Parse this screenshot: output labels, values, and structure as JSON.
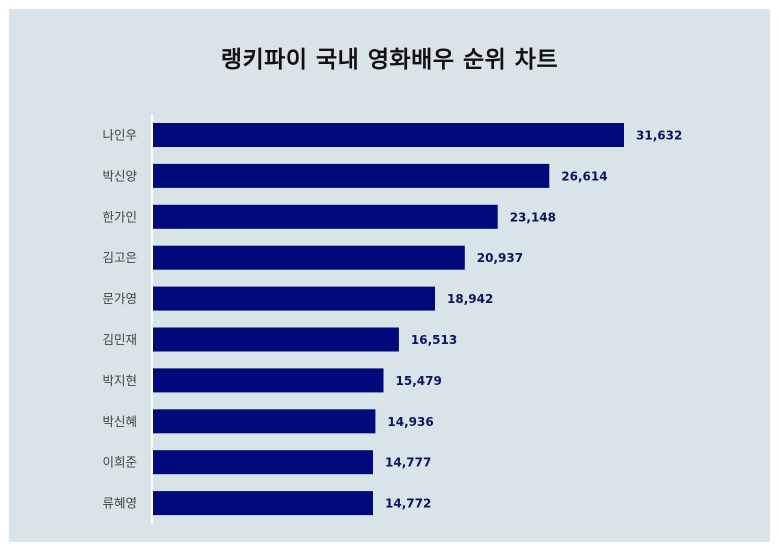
{
  "chart_data": {
    "type": "bar",
    "orientation": "horizontal",
    "title": "랭키파이 국내 영화배우 순위 차트",
    "categories": [
      "나인우",
      "박신양",
      "한가인",
      "김고은",
      "문가영",
      "김민재",
      "박지현",
      "박신혜",
      "이희준",
      "류혜영"
    ],
    "values": [
      31632,
      26614,
      23148,
      20937,
      18942,
      16513,
      15479,
      14936,
      14777,
      14772
    ],
    "value_labels": [
      "31,632",
      "26,614",
      "23,148",
      "20,937",
      "18,942",
      "16,513",
      "15,479",
      "14,936",
      "14,777",
      "14,772"
    ],
    "xlim": [
      0,
      31632
    ],
    "bar_color": "#000a7a",
    "label_color": "#0b1560",
    "background_color": "#d9e4e8",
    "grid": false,
    "legend": "none"
  }
}
